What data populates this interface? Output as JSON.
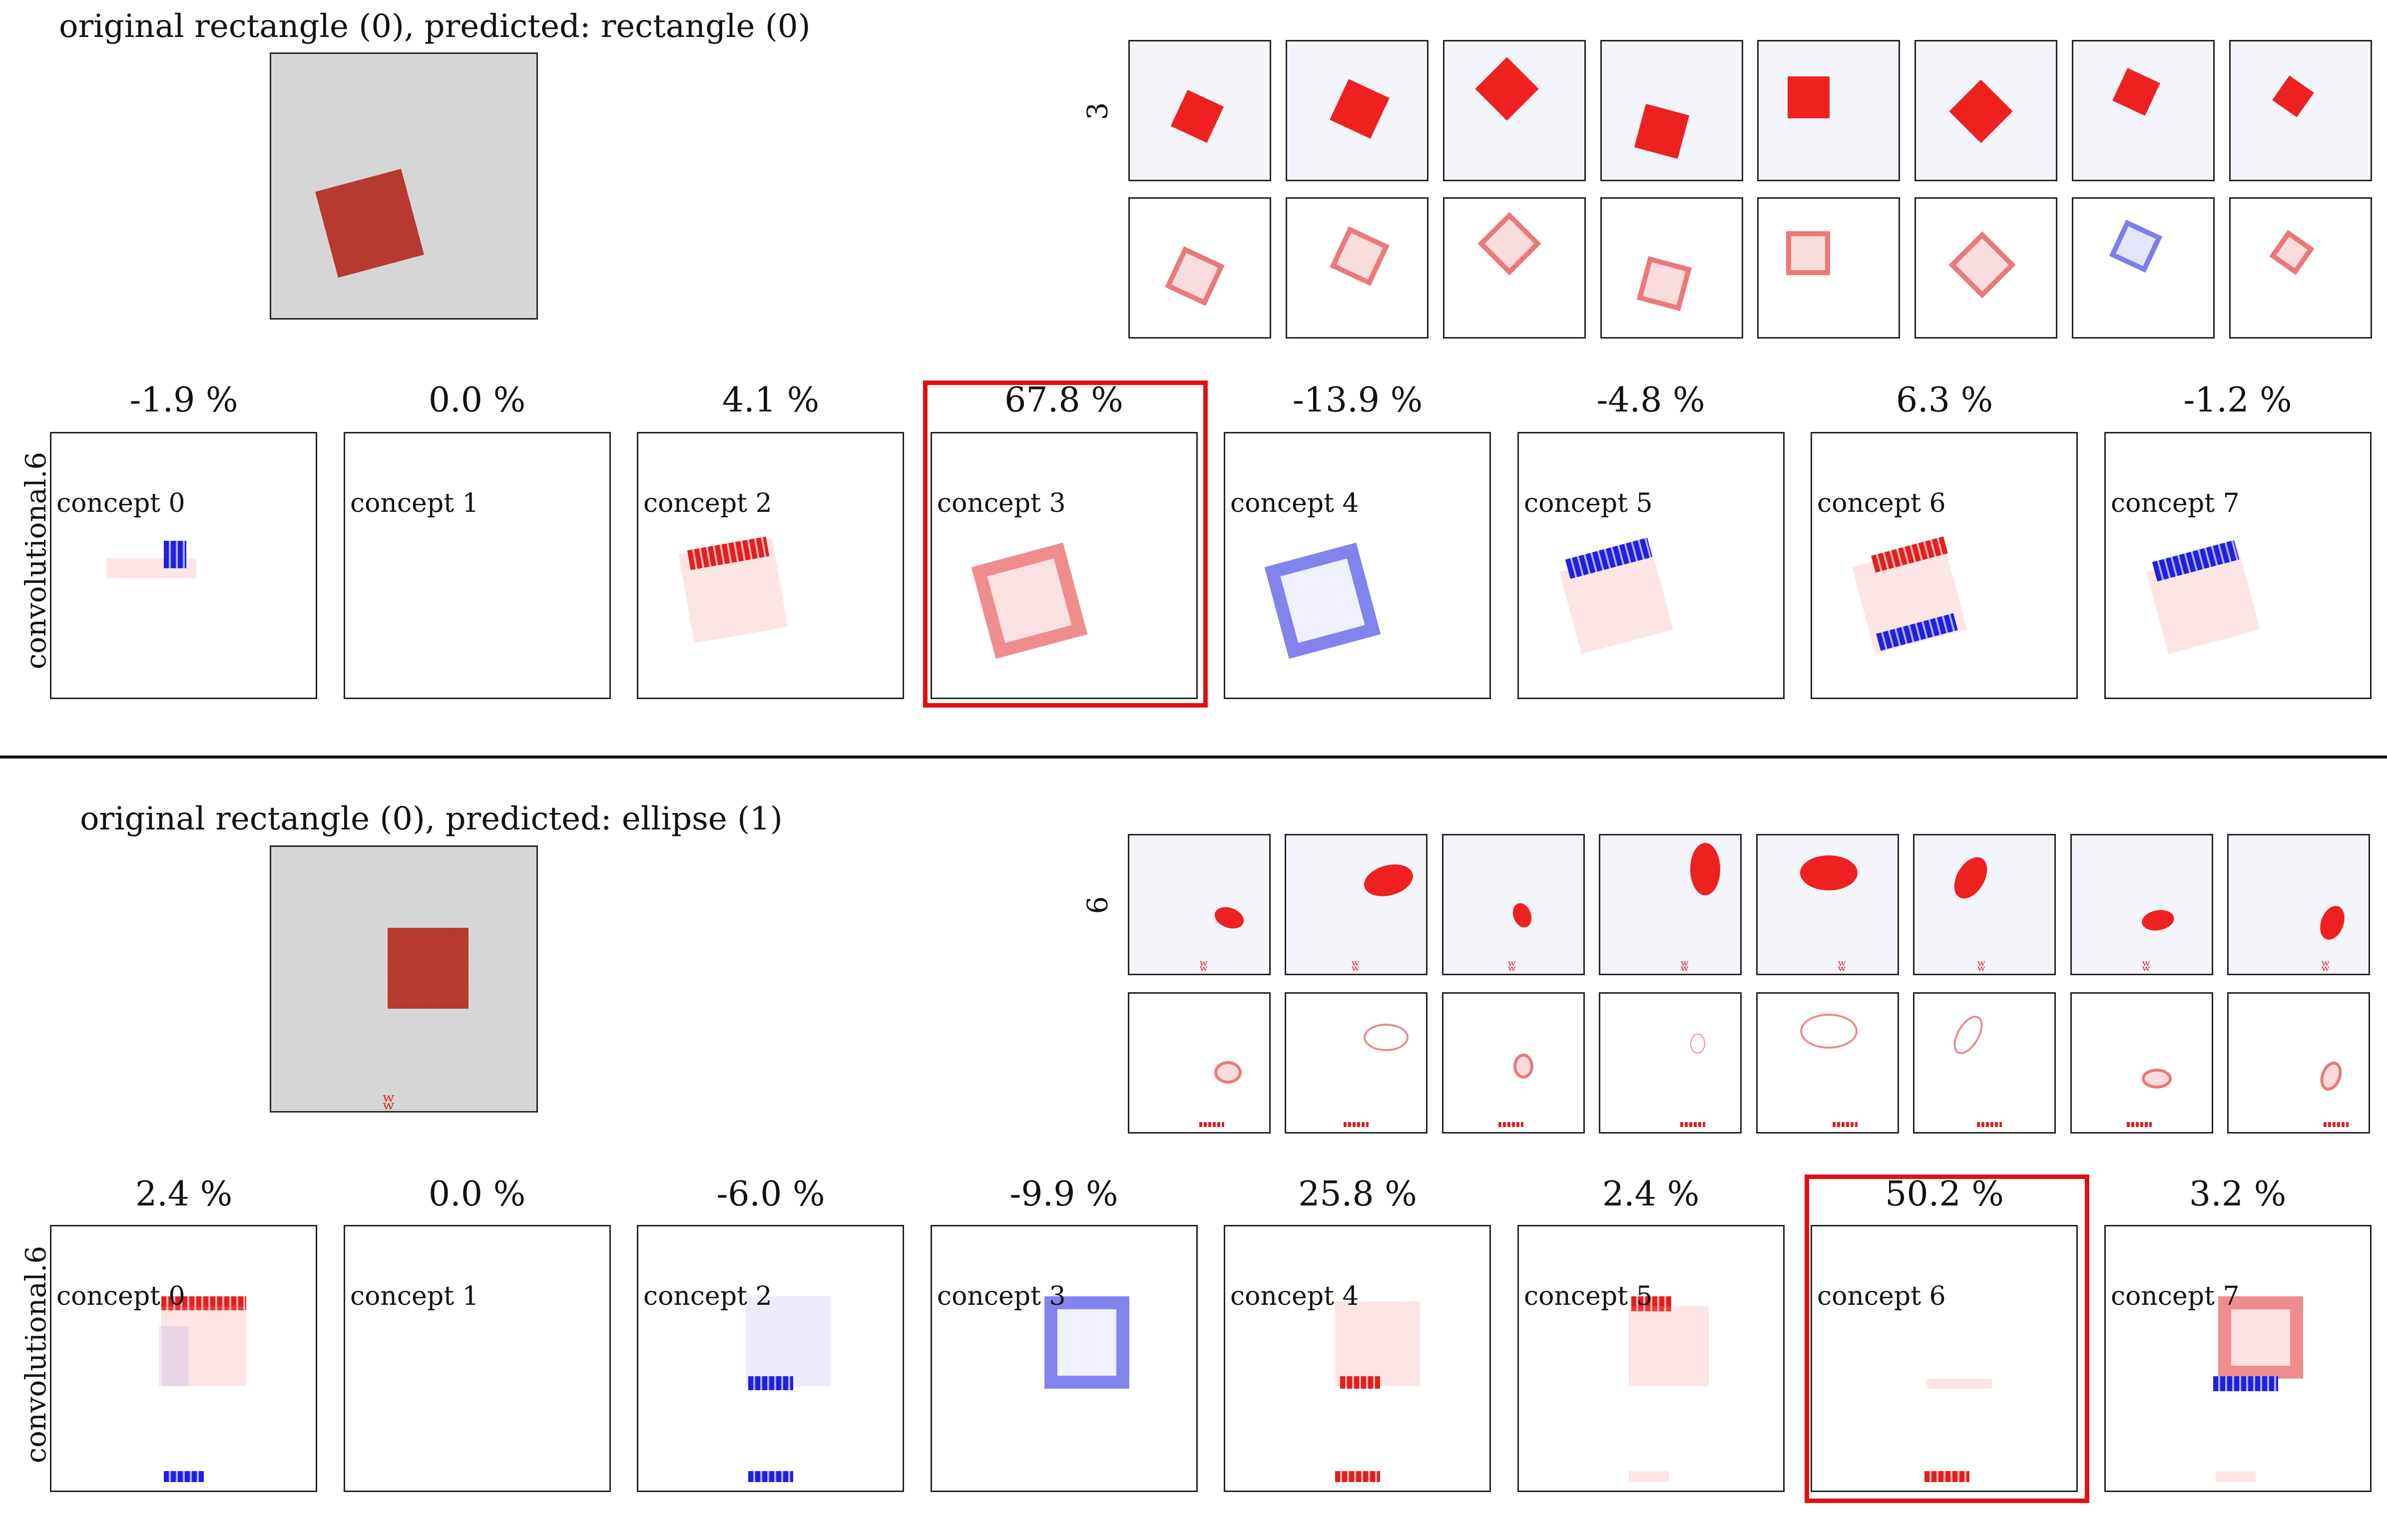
{
  "panel_1": {
    "title": "original rectangle (0), predicted: rectangle (0)",
    "class_label": "3",
    "layer_label": "convolutional.6",
    "percentages": [
      "-1.9 %",
      "0.0 %",
      "4.1 %",
      "67.8 %",
      "-13.9 %",
      "-4.8 %",
      "6.3 %",
      "-1.2 %"
    ],
    "concepts": [
      "concept 0",
      "concept 1",
      "concept 2",
      "concept 3",
      "concept 4",
      "concept 5",
      "concept 6",
      "concept 7"
    ],
    "highlighted_concept": "concept 3"
  },
  "panel_2": {
    "title": "original rectangle (0), predicted: ellipse (1)",
    "class_label": "6",
    "layer_label": "convolutional.6",
    "percentages": [
      "2.4 %",
      "0.0 %",
      "-6.0 %",
      "-9.9 %",
      "25.8 %",
      "2.4 %",
      "50.2 %",
      "3.2 %"
    ],
    "concepts": [
      "concept 0",
      "concept 1",
      "concept 2",
      "concept 3",
      "concept 4",
      "concept 5",
      "concept 6",
      "concept 7"
    ],
    "highlighted_concept": "concept 6"
  },
  "colors": {
    "positive": "#e02020",
    "negative": "#2020e0",
    "highlight": "#e01010",
    "image_bg": "#d6d6d6",
    "shape": "#b83a30"
  }
}
